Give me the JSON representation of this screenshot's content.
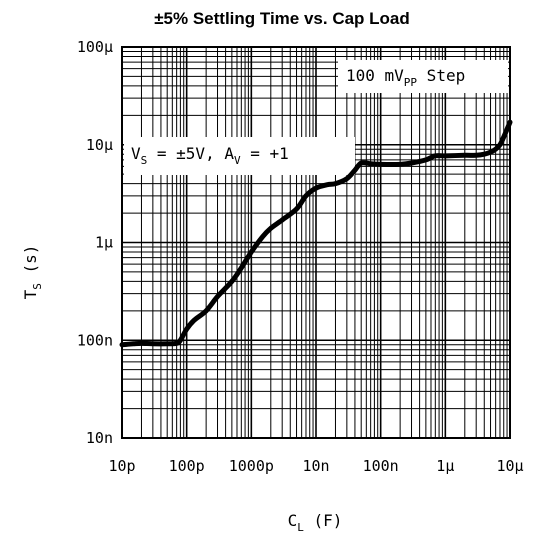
{
  "chart_data": {
    "type": "line",
    "title": "±5% Settling Time vs. Cap Load",
    "xlabel": {
      "main": "C",
      "sub": "L",
      "unit": " (F)"
    },
    "ylabel": {
      "main": "T",
      "sub": "S",
      "unit": " (s)"
    },
    "x_scale": "log",
    "y_scale": "log",
    "xlim": [
      1e-11,
      1e-05
    ],
    "ylim": [
      1e-08,
      0.0001
    ],
    "grid": true,
    "x_ticks": [
      {
        "value": 1e-11,
        "label": "10p"
      },
      {
        "value": 1e-10,
        "label": "100p"
      },
      {
        "value": 1e-09,
        "label": "1000p"
      },
      {
        "value": 1e-08,
        "label": "10n"
      },
      {
        "value": 1e-07,
        "label": "100n"
      },
      {
        "value": 1e-06,
        "label": "1µ"
      },
      {
        "value": 1e-05,
        "label": "10µ"
      }
    ],
    "y_ticks": [
      {
        "value": 1e-08,
        "label": "10n"
      },
      {
        "value": 1e-07,
        "label": "100n"
      },
      {
        "value": 1e-06,
        "label": "1µ"
      },
      {
        "value": 1e-05,
        "label": "10µ"
      },
      {
        "value": 0.0001,
        "label": "100µ"
      }
    ],
    "annotations": [
      {
        "parts": [
          {
            "text": "100 mV"
          },
          {
            "text": "PP",
            "sub": true
          },
          {
            "text": " Step"
          }
        ],
        "placement": "top-right"
      },
      {
        "parts": [
          {
            "text": "V"
          },
          {
            "text": "S",
            "sub": true
          },
          {
            "text": " = ±5V, A"
          },
          {
            "text": "V",
            "sub": true
          },
          {
            "text": " = +1"
          }
        ],
        "placement": "upper-left"
      }
    ],
    "series": [
      {
        "color": "#000000",
        "x": [
          1e-11,
          1.5e-11,
          2e-11,
          3e-11,
          5e-11,
          7e-11,
          8e-11,
          1e-10,
          1.3e-10,
          2e-10,
          3e-10,
          5e-10,
          7e-10,
          1e-09,
          1.5e-09,
          2e-09,
          3e-09,
          5e-09,
          7e-09,
          1e-08,
          1.5e-08,
          2e-08,
          3e-08,
          4e-08,
          5e-08,
          7e-08,
          1e-07,
          2e-07,
          3e-07,
          5e-07,
          7e-07,
          1e-06,
          2e-06,
          3e-06,
          4e-06,
          5e-06,
          6e-06,
          7e-06,
          8e-06,
          1e-05
        ],
        "y": [
          9e-08,
          9.2e-08,
          9.3e-08,
          9.2e-08,
          9.2e-08,
          9.3e-08,
          1e-07,
          1.3e-07,
          1.6e-07,
          2e-07,
          2.8e-07,
          4e-07,
          5.5e-07,
          8e-07,
          1.15e-06,
          1.4e-06,
          1.7e-06,
          2.2e-06,
          3e-06,
          3.6e-06,
          3.9e-06,
          4e-06,
          4.5e-06,
          5.5e-06,
          6.5e-06,
          6.4e-06,
          6.3e-06,
          6.3e-06,
          6.5e-06,
          7e-06,
          7.7e-06,
          7.7e-06,
          7.8e-06,
          7.8e-06,
          8e-06,
          8.4e-06,
          9e-06,
          1e-05,
          1.2e-05,
          1.7e-05
        ]
      }
    ]
  }
}
